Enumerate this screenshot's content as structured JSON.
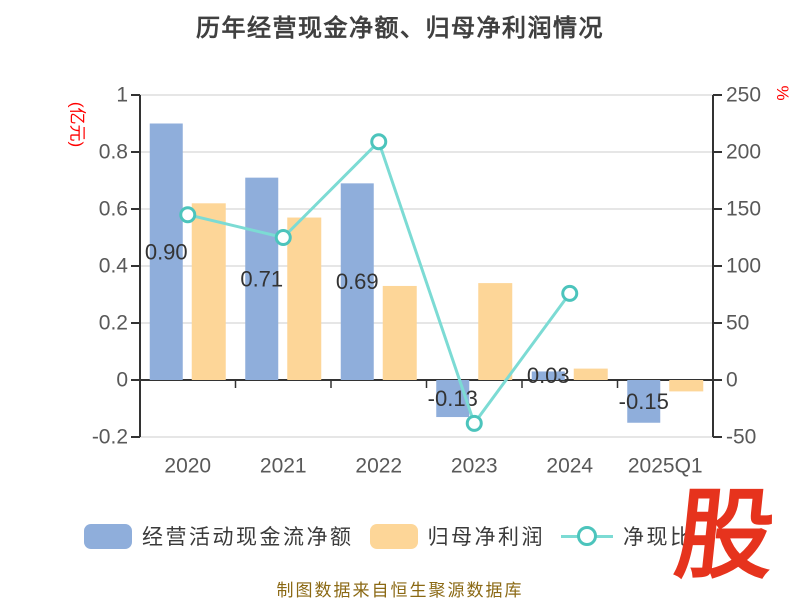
{
  "title": "历年经营现金净额、归母净利润情况",
  "caption": "制图数据来自恒生聚源数据库",
  "logo_text": "股",
  "legend": [
    {
      "label": "经营活动现金流净额",
      "type": "bar"
    },
    {
      "label": "归母净利润",
      "type": "bar"
    },
    {
      "label": "净现比",
      "type": "line"
    }
  ],
  "colors": {
    "background": "#FFFFFF",
    "title_text": "#404040",
    "grid": "#CCCCCC",
    "axis": "#333333",
    "tick_text": "#595959",
    "bar_label": "#333333",
    "bar_blue": "#8FAEDB",
    "bar_yellow": "#FDD698",
    "line_teal": "#7CDBD4",
    "marker_ring": "#4CC4BC",
    "unit_text": "#FF0000",
    "legend_text": "#3A3A3A",
    "caption_text": "#8B6914",
    "logo_red": "#E6331D"
  },
  "chart_data": {
    "type": "bar",
    "subtype": "grouped-bars-with-line-overlay",
    "title": "历年经营现金净额、归母净利润情况",
    "categories": [
      "2020",
      "2021",
      "2022",
      "2023",
      "2024",
      "2025Q1"
    ],
    "series": [
      {
        "name": "经营活动现金流净额",
        "type": "bar",
        "axis": "left",
        "color": "#8FAEDB",
        "values": [
          0.9,
          0.71,
          0.69,
          -0.13,
          0.03,
          -0.15
        ],
        "labels": [
          "0.90",
          "0.71",
          "0.69",
          "-0.13",
          "0.03",
          "-0.15"
        ]
      },
      {
        "name": "归母净利润",
        "type": "bar",
        "axis": "left",
        "color": "#FDD698",
        "values": [
          0.62,
          0.57,
          0.33,
          0.34,
          0.04,
          -0.04
        ],
        "labels": [
          "",
          "",
          "",
          "",
          "",
          ""
        ]
      },
      {
        "name": "净现比",
        "type": "line",
        "axis": "right",
        "color": "#7CDBD4",
        "values": [
          145,
          125,
          209,
          -38,
          76,
          null
        ],
        "labels": [
          "",
          "",
          "",
          "",
          "",
          ""
        ]
      }
    ],
    "left_axis": {
      "unit": "(亿元)",
      "min": -0.2,
      "max": 1,
      "tick_labels": [
        "1",
        "0.8",
        "0.6",
        "0.4",
        "0.2",
        "0",
        "-0.2"
      ]
    },
    "right_axis": {
      "unit": "%",
      "min": -50,
      "max": 250,
      "tick_labels": [
        "250",
        "200",
        "150",
        "100",
        "50",
        "0",
        "-50"
      ]
    },
    "grid": true,
    "legend_position": "bottom"
  }
}
